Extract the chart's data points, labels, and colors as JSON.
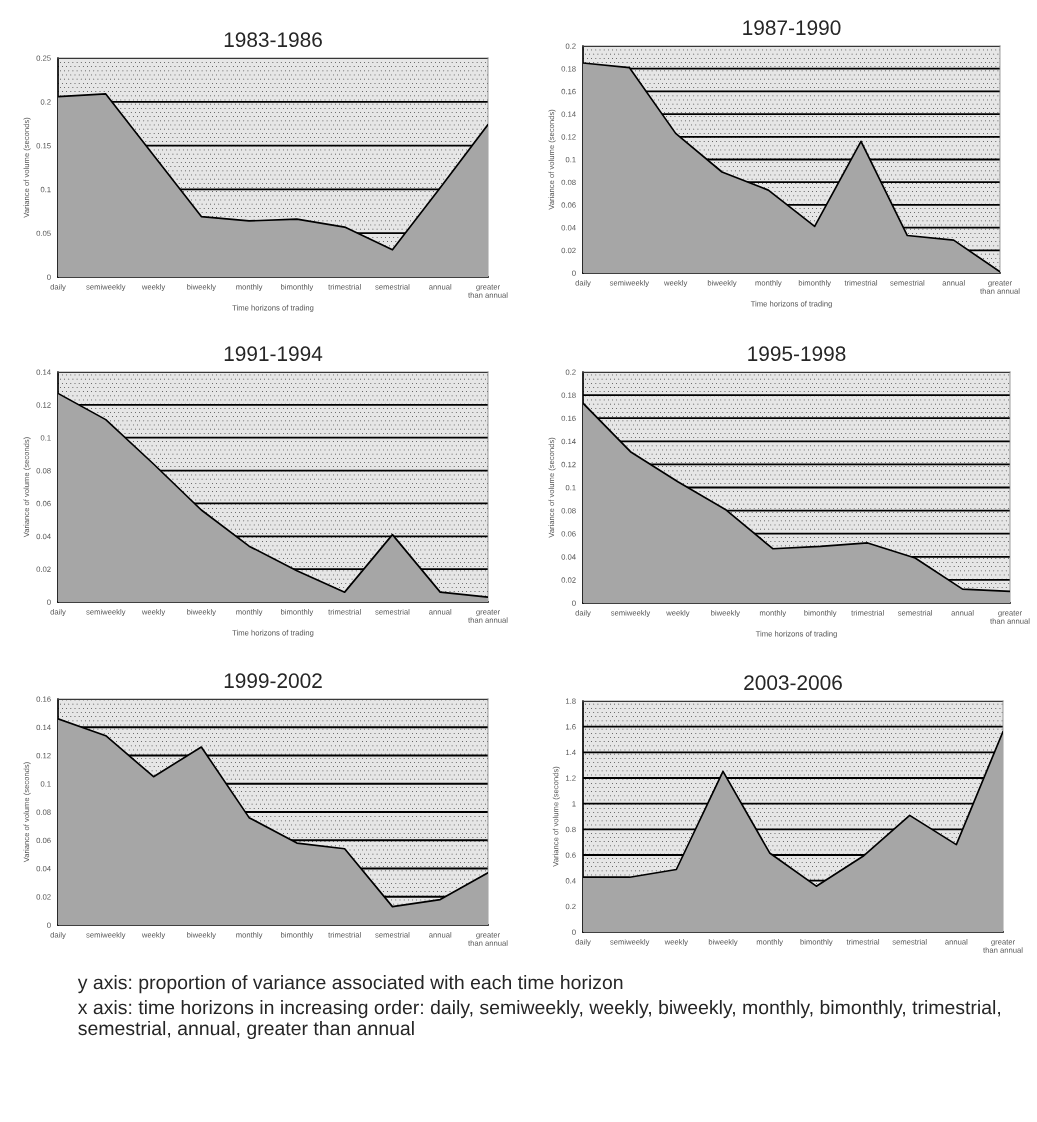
{
  "chart_data": [
    {
      "type": "area",
      "title": "1983-1986",
      "xlabel": "Time horizons of trading",
      "ylabel": "Variance of volume (seconds)",
      "color": "#a6a6a6",
      "grid": "y",
      "categories": [
        "daily",
        "semiweekly",
        "weekly",
        "biweekly",
        "monthly",
        "bimonthly",
        "trimestrial",
        "semestrial",
        "annual",
        "greater than annual"
      ],
      "values": [
        0.206,
        0.209,
        0.139,
        0.069,
        0.064,
        0.066,
        0.057,
        0.031,
        0.102,
        0.174
      ],
      "ylim": [
        0,
        0.25
      ],
      "yticks": [
        0,
        0.05,
        0.1,
        0.15,
        0.2,
        0.25
      ]
    },
    {
      "type": "area",
      "title": "1987-1990",
      "xlabel": "Time horizons of trading",
      "ylabel": "Variance of volume (seconds)",
      "color": "#a6a6a6",
      "grid": "y",
      "categories": [
        "daily",
        "semiweekly",
        "weekly",
        "biweekly",
        "monthly",
        "bimonthly",
        "trimestrial",
        "semestrial",
        "annual",
        "greater than annual"
      ],
      "values": [
        0.185,
        0.181,
        0.123,
        0.089,
        0.073,
        0.041,
        0.116,
        0.033,
        0.029,
        0.001
      ],
      "ylim": [
        0,
        0.2
      ],
      "yticks": [
        0,
        0.02,
        0.04,
        0.06,
        0.08,
        0.1,
        0.12,
        0.14,
        0.16,
        0.18,
        0.2
      ]
    },
    {
      "type": "area",
      "title": "1991-1994",
      "xlabel": "Time horizons of trading",
      "ylabel": "Variance of volume (seconds)",
      "color": "#a6a6a6",
      "grid": "y",
      "categories": [
        "daily",
        "semiweekly",
        "weekly",
        "biweekly",
        "monthly",
        "bimonthly",
        "trimestrial",
        "semestrial",
        "annual",
        "greater than annual"
      ],
      "values": [
        0.127,
        0.111,
        0.084,
        0.056,
        0.034,
        0.019,
        0.006,
        0.041,
        0.006,
        0.003
      ],
      "ylim": [
        0,
        0.14
      ],
      "yticks": [
        0,
        0.02,
        0.04,
        0.06,
        0.08,
        0.1,
        0.12,
        0.14
      ]
    },
    {
      "type": "area",
      "title": "1995-1998",
      "xlabel": "Time horizons of trading",
      "ylabel": "Variance of volume (seconds)",
      "color": "#a6a6a6",
      "grid": "y",
      "categories": [
        "daily",
        "semiweekly",
        "weekly",
        "biweekly",
        "monthly",
        "bimonthly",
        "trimestrial",
        "semestrial",
        "annual",
        "greater than annual"
      ],
      "values": [
        0.173,
        0.131,
        0.105,
        0.081,
        0.047,
        0.049,
        0.052,
        0.039,
        0.012,
        0.01
      ],
      "ylim": [
        0,
        0.2
      ],
      "yticks": [
        0,
        0.02,
        0.04,
        0.06,
        0.08,
        0.1,
        0.12,
        0.14,
        0.16,
        0.18,
        0.2
      ]
    },
    {
      "type": "area",
      "title": "1999-2002",
      "ylabel": "Variance of volume (seconds)",
      "color": "#a6a6a6",
      "grid": "y",
      "categories": [
        "daily",
        "semiweekly",
        "weekly",
        "biweekly",
        "monthly",
        "bimonthly",
        "trimestrial",
        "semestrial",
        "annual",
        "greater than annual"
      ],
      "values": [
        0.146,
        0.134,
        0.105,
        0.126,
        0.076,
        0.058,
        0.054,
        0.013,
        0.018,
        0.037
      ],
      "ylim": [
        0,
        0.16
      ],
      "yticks": [
        0,
        0.02,
        0.04,
        0.06,
        0.08,
        0.1,
        0.12,
        0.14,
        0.16
      ]
    },
    {
      "type": "area",
      "title": "2003-2006",
      "ylabel": "Variance of volume (seconds)",
      "color": "#a6a6a6",
      "grid": "y",
      "categories": [
        "daily",
        "semiweekly",
        "weekly",
        "biweekly",
        "monthly",
        "bimonthly",
        "trimestrial",
        "semestrial",
        "annual",
        "greater than annual"
      ],
      "values": [
        0.427,
        0.427,
        0.487,
        1.251,
        0.616,
        0.357,
        0.59,
        0.909,
        0.681,
        1.562
      ],
      "ylim": [
        0,
        1.8
      ],
      "yticks": [
        0,
        0.2,
        0.4,
        0.6,
        0.8,
        1,
        1.2,
        1.4,
        1.6,
        1.8
      ],
      "annotations": [
        "y axis: proportion of variance associated with each time horizon",
        "x axis: time horizons in increasing order: daily, semiweekly, weekly, biweekly, monthly, bimonthly, trimestrial, semestrial, annual, greater than annual"
      ]
    }
  ]
}
